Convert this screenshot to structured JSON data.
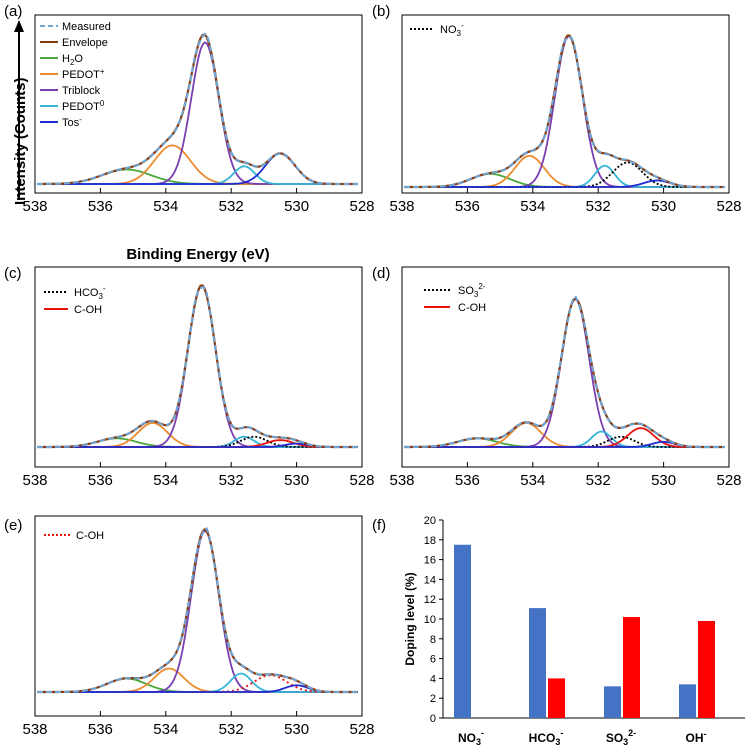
{
  "colors": {
    "measured": "#6ea6d6",
    "envelope": "#8b3b12",
    "h2o": "#4aa83a",
    "pedot_plus": "#ee8a2e",
    "triblock": "#7a3fb0",
    "pedot0": "#34b4d8",
    "tos": "#1f2ccf",
    "cation_dotted": "#000000",
    "coh": "#e8120c",
    "bar_blue": "#4472c4",
    "bar_red": "#ff0000"
  },
  "chart_data": [
    {
      "panel": "(a)",
      "type": "line",
      "xlabel": "Binding Energy (eV)",
      "ylabel": "Intensity (Counts)",
      "xlim": [
        538,
        528
      ],
      "xticks": [
        "538",
        "536",
        "534",
        "532",
        "530",
        "528"
      ],
      "legend": [
        "Measured",
        "Envelope",
        "H2O",
        "PEDOT+",
        "Triblock",
        "PEDOT0",
        "Tos-"
      ],
      "peaks": [
        {
          "name": "H2O",
          "center": 535.2,
          "height": 0.09,
          "width": 0.75
        },
        {
          "name": "PEDOT+",
          "center": 533.8,
          "height": 0.24,
          "width": 0.55
        },
        {
          "name": "Triblock",
          "center": 532.8,
          "height": 0.88,
          "width": 0.42
        },
        {
          "name": "PEDOT0",
          "center": 531.6,
          "height": 0.11,
          "width": 0.32
        },
        {
          "name": "Tos-",
          "center": 530.5,
          "height": 0.19,
          "width": 0.45
        }
      ]
    },
    {
      "panel": "(b)",
      "type": "line",
      "xlim": [
        538,
        528
      ],
      "xticks": [
        "538",
        "536",
        "534",
        "532",
        "530",
        "528"
      ],
      "legend": [
        "NO3-"
      ],
      "peaks": [
        {
          "name": "H2O",
          "center": 535.3,
          "height": 0.08,
          "width": 0.6
        },
        {
          "name": "PEDOT+",
          "center": 534.1,
          "height": 0.19,
          "width": 0.45
        },
        {
          "name": "Triblock",
          "center": 532.9,
          "height": 0.92,
          "width": 0.42
        },
        {
          "name": "PEDOT0",
          "center": 531.8,
          "height": 0.13,
          "width": 0.3
        },
        {
          "name": "NO3-",
          "center": 531.1,
          "height": 0.15,
          "width": 0.45
        },
        {
          "name": "Tos-",
          "center": 530.2,
          "height": 0.04,
          "width": 0.4
        }
      ]
    },
    {
      "panel": "(c)",
      "type": "line",
      "xlim": [
        538,
        528
      ],
      "xticks": [
        "538",
        "536",
        "534",
        "532",
        "530",
        "528"
      ],
      "legend": [
        "HCO3-",
        "C-OH"
      ],
      "peaks": [
        {
          "name": "H2O",
          "center": 535.5,
          "height": 0.05,
          "width": 0.6
        },
        {
          "name": "PEDOT+",
          "center": 534.4,
          "height": 0.14,
          "width": 0.45
        },
        {
          "name": "Triblock",
          "center": 532.9,
          "height": 0.94,
          "width": 0.42
        },
        {
          "name": "PEDOT0",
          "center": 531.6,
          "height": 0.06,
          "width": 0.3
        },
        {
          "name": "HCO3-",
          "center": 531.3,
          "height": 0.06,
          "width": 0.4
        },
        {
          "name": "C-OH",
          "center": 530.5,
          "height": 0.04,
          "width": 0.4
        },
        {
          "name": "Tos-",
          "center": 530.0,
          "height": 0.02,
          "width": 0.35
        }
      ]
    },
    {
      "panel": "(d)",
      "type": "line",
      "xlim": [
        538,
        528
      ],
      "xticks": [
        "538",
        "536",
        "534",
        "532",
        "530",
        "528"
      ],
      "legend": [
        "SO32-",
        "C-OH"
      ],
      "peaks": [
        {
          "name": "H2O",
          "center": 535.7,
          "height": 0.05,
          "width": 0.6
        },
        {
          "name": "PEDOT+",
          "center": 534.2,
          "height": 0.14,
          "width": 0.45
        },
        {
          "name": "Triblock",
          "center": 532.7,
          "height": 0.86,
          "width": 0.42
        },
        {
          "name": "PEDOT0",
          "center": 531.9,
          "height": 0.09,
          "width": 0.3
        },
        {
          "name": "SO32-",
          "center": 531.3,
          "height": 0.06,
          "width": 0.4
        },
        {
          "name": "C-OH",
          "center": 530.7,
          "height": 0.11,
          "width": 0.4
        },
        {
          "name": "Tos-",
          "center": 530.0,
          "height": 0.03,
          "width": 0.35
        }
      ]
    },
    {
      "panel": "(e)",
      "type": "line",
      "xlim": [
        538,
        528
      ],
      "xticks": [
        "538",
        "536",
        "534",
        "532",
        "530",
        "528"
      ],
      "legend": [
        "C-OH"
      ],
      "peaks": [
        {
          "name": "H2O",
          "center": 535.2,
          "height": 0.08,
          "width": 0.6
        },
        {
          "name": "PEDOT+",
          "center": 533.9,
          "height": 0.14,
          "width": 0.45
        },
        {
          "name": "Triblock",
          "center": 532.8,
          "height": 0.96,
          "width": 0.42
        },
        {
          "name": "PEDOT0",
          "center": 531.7,
          "height": 0.11,
          "width": 0.32
        },
        {
          "name": "C-OH",
          "center": 530.8,
          "height": 0.1,
          "width": 0.5
        },
        {
          "name": "Tos-",
          "center": 530.0,
          "height": 0.04,
          "width": 0.35
        }
      ]
    },
    {
      "panel": "(f)",
      "type": "bar",
      "ylabel": "Doping level (%)",
      "ylim": [
        0,
        20
      ],
      "yticks": [
        "0",
        "2",
        "4",
        "6",
        "8",
        "10",
        "12",
        "14",
        "16",
        "18",
        "20"
      ],
      "categories": [
        "NO3-",
        "HCO3-",
        "SO32-",
        "OH-"
      ],
      "series": [
        {
          "name": "blue",
          "values": [
            17.5,
            11.1,
            3.2,
            3.4
          ]
        },
        {
          "name": "red",
          "values": [
            0,
            4.0,
            10.2,
            9.8
          ]
        }
      ]
    }
  ],
  "text": {
    "panel_a": "(a)",
    "panel_b": "(b)",
    "panel_c": "(c)",
    "panel_d": "(d)",
    "panel_e": "(e)",
    "panel_f": "(f)",
    "legend_a": {
      "measured": "Measured",
      "envelope": "Envelope",
      "h2o_main": "H",
      "h2o_sub": "2",
      "h2o_end": "O",
      "pedotplus_main": "PEDOT",
      "pedotplus_sup": "+",
      "triblock": "Triblock",
      "pedot0_main": "PEDOT",
      "pedot0_sup": "0",
      "tos_main": "Tos",
      "tos_sup": "-"
    },
    "legend_b": {
      "no3_main": "NO",
      "no3_sub": "3",
      "no3_sup": "-"
    },
    "legend_c": {
      "hco3_main": "HCO",
      "hco3_sub": "3",
      "hco3_sup": "-",
      "coh": "C-OH"
    },
    "legend_d": {
      "so3_main": "SO",
      "so3_sub": "3",
      "so3_sup": "2-",
      "coh": "C-OH"
    },
    "legend_e": {
      "coh": "C-OH"
    },
    "xaxis_title": "Binding Energy (eV)",
    "yaxis_title": "Intensity (Counts)",
    "f_ylabel": "Doping level (%)",
    "f_cats": [
      {
        "main": "NO",
        "sub": "3",
        "sup": "-"
      },
      {
        "main": "HCO",
        "sub": "3",
        "sup": "-"
      },
      {
        "main": "SO",
        "sub": "3",
        "sup": "2-"
      },
      {
        "main": "OH",
        "sub": "",
        "sup": "-"
      }
    ]
  }
}
